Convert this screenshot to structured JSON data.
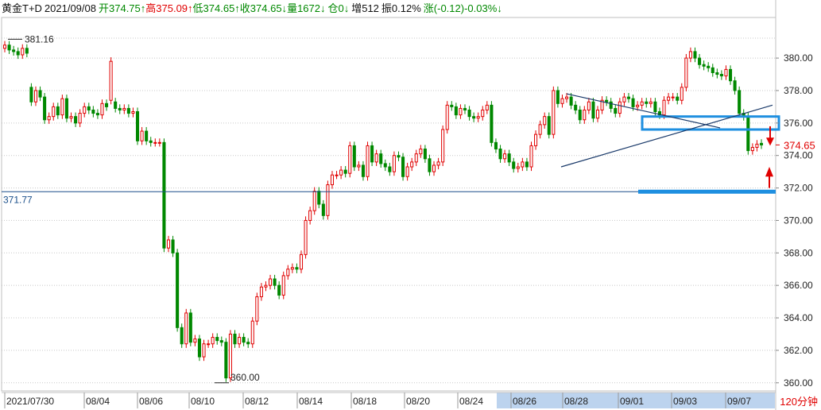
{
  "header": {
    "name": "黄金T+D",
    "date": "2021/09/08",
    "open": "开374.75↑",
    "high": "高375.09↑",
    "low": "低374.65↑",
    "close": "收374.65↓",
    "volume": "量1672↓",
    "position": "仓0↓",
    "increase": "增512",
    "amplitude": "振0.12%",
    "change": "涨(-0.12)-0.03%↓"
  },
  "period_label": "120分钟",
  "chart_data": {
    "type": "candlestick",
    "title": "黄金T+D",
    "ylim": [
      359.5,
      382.5
    ],
    "y_ticks": [
      360,
      362,
      364,
      366,
      368,
      370,
      372,
      374,
      376,
      378,
      380
    ],
    "y_tick_labels": [
      "360.00",
      "362.00",
      "364.00",
      "366.00",
      "368.00",
      "370.00",
      "372.00",
      "374.00",
      "376.00",
      "378.00",
      "380.00"
    ],
    "x_tick_labels": [
      "2021/07/30",
      "08/04",
      "08/06",
      "08/10",
      "08/12",
      "08/14",
      "08/18",
      "08/20",
      "08/24",
      "08/26",
      "08/28",
      "09/01",
      "09/03",
      "09/07"
    ],
    "max_label": "381.16",
    "min_label": "360.00",
    "last_price_label": "374.65",
    "support_label": "371.77",
    "support_value": 371.77,
    "closes": [
      380.8,
      380.5,
      380.4,
      380.2,
      380.6,
      380.3,
      377.3,
      378.0,
      377.6,
      376.2,
      376.4,
      377.0,
      376.5,
      377.5,
      376.3,
      376.4,
      376.0,
      376.6,
      377.0,
      376.8,
      376.6,
      376.5,
      377.2,
      377.0,
      379.8,
      376.9,
      376.8,
      376.9,
      376.6,
      376.7,
      374.9,
      375.5,
      374.9,
      374.8,
      374.8,
      374.8,
      368.3,
      368.8,
      368.0,
      363.4,
      362.4,
      364.3,
      362.5,
      362.7,
      361.6,
      362.4,
      362.4,
      362.8,
      362.6,
      362.5,
      360.3,
      363.0,
      362.4,
      362.8,
      362.5,
      362.4,
      363.8,
      365.3,
      365.9,
      366.0,
      366.4,
      366.0,
      365.4,
      366.6,
      367.0,
      367.1,
      367.0,
      367.9,
      370.0,
      370.6,
      371.8,
      371.0,
      370.3,
      372.2,
      372.8,
      372.8,
      373.1,
      372.9,
      374.6,
      373.3,
      373.4,
      372.7,
      374.6,
      373.6,
      374.1,
      373.5,
      373.3,
      373.0,
      374.0,
      373.9,
      372.7,
      373.3,
      373.6,
      374.1,
      374.4,
      373.8,
      373.0,
      373.4,
      373.6,
      375.6,
      377.1,
      377.0,
      376.5,
      376.9,
      376.8,
      376.4,
      376.3,
      376.4,
      376.8,
      377.1,
      374.8,
      374.4,
      373.8,
      374.1,
      373.6,
      373.2,
      373.3,
      373.6,
      373.3,
      374.6,
      375.3,
      375.9,
      376.4,
      375.3,
      378.0,
      377.2,
      377.5,
      377.6,
      377.1,
      376.8,
      376.2,
      376.8,
      377.3,
      376.3,
      376.8,
      377.4,
      377.3,
      376.9,
      376.6,
      377.3,
      377.6,
      377.5,
      377.0,
      377.1,
      377.3,
      377.2,
      377.3,
      376.7,
      376.5,
      377.4,
      377.6,
      377.6,
      377.4,
      378.2,
      380.0,
      380.4,
      380.0,
      379.6,
      379.5,
      379.4,
      379.1,
      379.0,
      378.9,
      379.3,
      378.6,
      378.0,
      376.6,
      376.4,
      374.3,
      374.5,
      374.7,
      374.65
    ],
    "opens": [
      380.6,
      380.8,
      380.5,
      380.4,
      380.2,
      380.6,
      378.2,
      377.3,
      378.0,
      377.6,
      376.2,
      376.4,
      377.0,
      376.5,
      377.5,
      376.3,
      376.4,
      376.0,
      376.6,
      377.0,
      376.8,
      376.6,
      376.5,
      377.2,
      377.4,
      377.3,
      376.9,
      376.8,
      376.9,
      376.6,
      376.7,
      374.9,
      375.5,
      374.9,
      374.8,
      374.8,
      374.8,
      368.3,
      368.8,
      368.0,
      363.4,
      362.4,
      364.3,
      362.5,
      362.7,
      361.6,
      362.4,
      362.4,
      362.8,
      362.6,
      362.5,
      360.3,
      363.0,
      362.4,
      362.8,
      362.5,
      362.4,
      363.8,
      365.3,
      365.9,
      366.0,
      366.4,
      366.0,
      365.4,
      366.6,
      367.0,
      367.1,
      367.0,
      367.9,
      370.0,
      370.6,
      371.8,
      371.0,
      370.3,
      372.2,
      372.8,
      372.8,
      373.1,
      372.9,
      374.6,
      373.3,
      373.4,
      372.7,
      374.6,
      373.6,
      374.1,
      373.5,
      373.3,
      373.0,
      374.0,
      373.9,
      372.7,
      373.3,
      373.6,
      374.1,
      374.4,
      373.8,
      373.0,
      373.4,
      373.6,
      375.6,
      377.1,
      377.0,
      376.5,
      376.9,
      376.8,
      376.4,
      376.3,
      376.4,
      376.8,
      377.1,
      374.8,
      374.4,
      373.8,
      374.1,
      373.6,
      373.2,
      373.3,
      373.6,
      373.3,
      374.6,
      375.3,
      375.9,
      376.4,
      375.3,
      378.0,
      377.2,
      377.5,
      377.6,
      377.1,
      376.8,
      376.2,
      376.8,
      377.3,
      376.3,
      376.8,
      377.4,
      377.3,
      376.9,
      376.6,
      377.3,
      377.6,
      377.5,
      377.0,
      377.1,
      377.3,
      377.2,
      377.3,
      376.7,
      376.5,
      377.4,
      377.6,
      377.6,
      377.4,
      378.2,
      380.0,
      380.4,
      380.0,
      379.6,
      379.5,
      379.4,
      379.1,
      379.0,
      378.9,
      379.3,
      378.6,
      378.0,
      376.6,
      376.4,
      374.3,
      374.5,
      374.75
    ]
  },
  "colors": {
    "up": "#e00000",
    "down": "#008800",
    "box": "#1e8fe0",
    "trend": "#1a3a6a"
  }
}
